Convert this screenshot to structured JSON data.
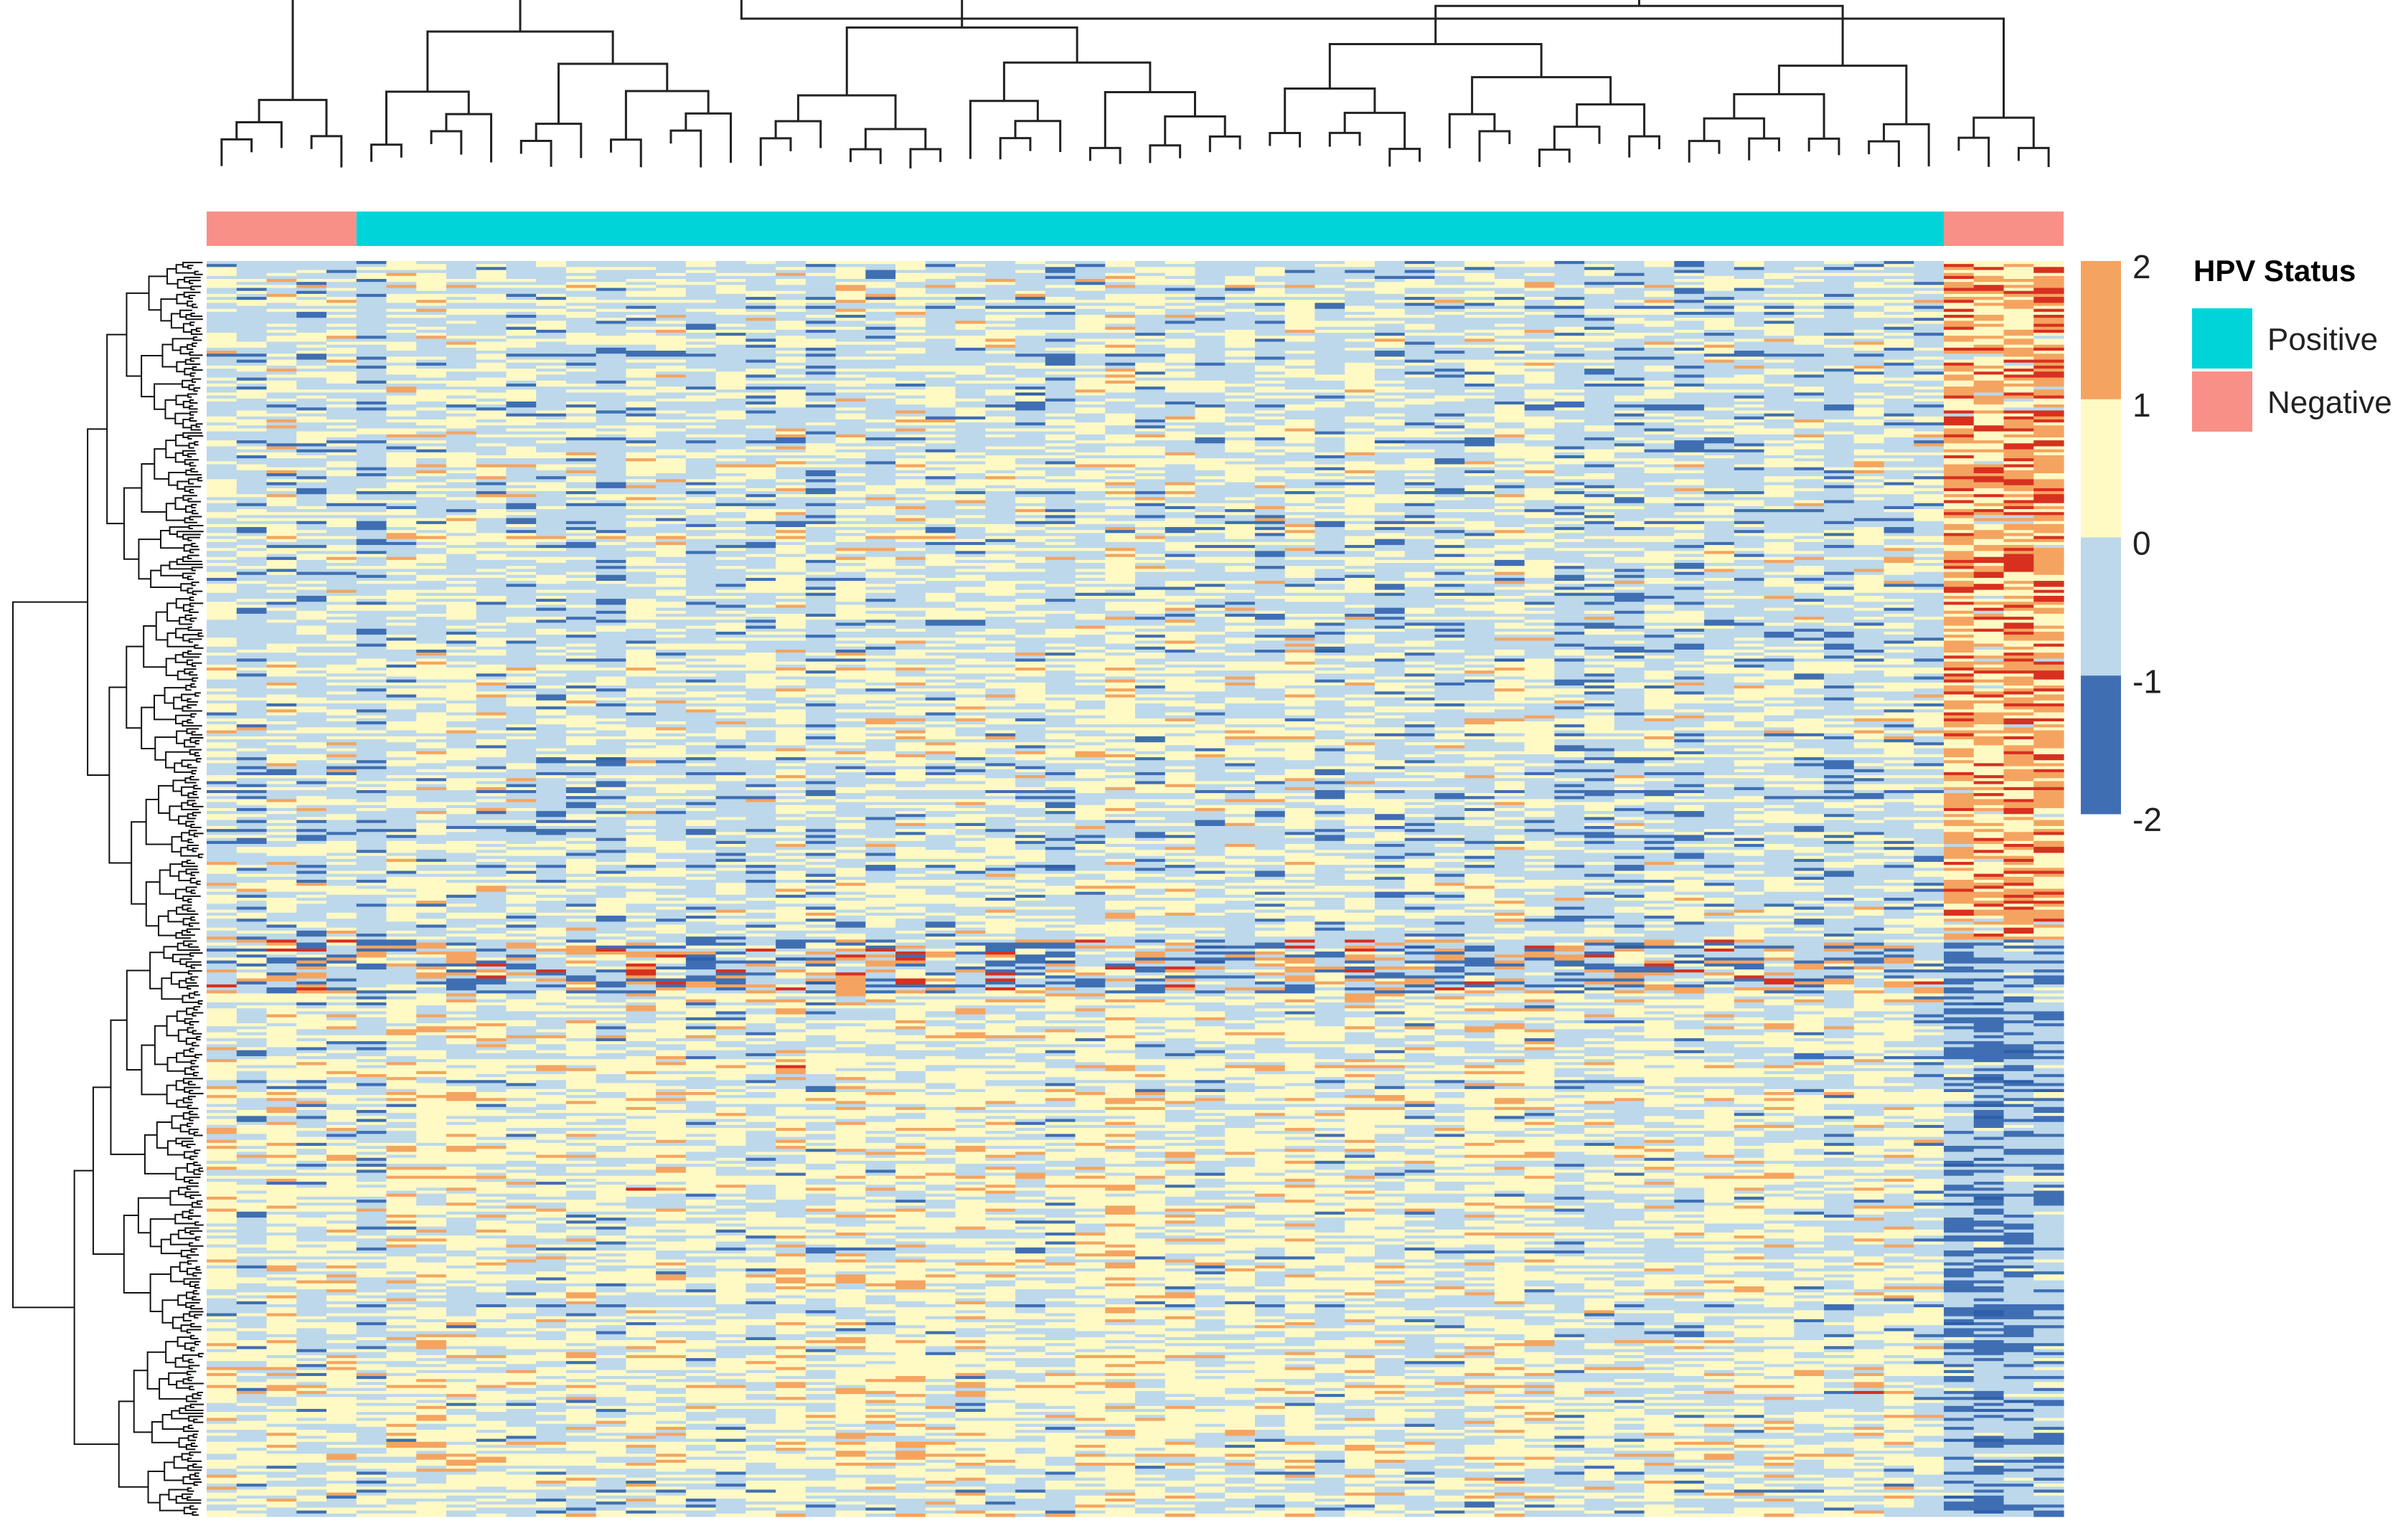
{
  "chart_data": {
    "type": "heatmap",
    "title": "",
    "xlabel": "",
    "ylabel": "",
    "n_samples": 62,
    "n_genes_shown": 420,
    "sample_groups": [
      {
        "status": "Negative",
        "count": 5
      },
      {
        "status": "Positive",
        "count": 53
      },
      {
        "status": "Negative",
        "count": 4
      }
    ],
    "row_clusters": [
      {
        "name": "upper",
        "fraction": 0.54
      },
      {
        "name": "lower",
        "fraction": 0.46
      }
    ],
    "color_scale": {
      "range": [
        -2,
        2
      ],
      "ticks": [
        "2",
        "1",
        "0",
        "-1",
        "-2"
      ],
      "bins": [
        {
          "from": 1,
          "to": 2,
          "color": "#f4a460"
        },
        {
          "from": 0,
          "to": 1,
          "color": "#fff9c4"
        },
        {
          "from": -1,
          "to": 0,
          "color": "#bcd8ea"
        },
        {
          "from": -2,
          "to": -1,
          "color": "#3f6eb3"
        }
      ],
      "extreme_high_color": "#d7301f",
      "extreme_low_color": "#2e5fa8"
    },
    "legend": {
      "title": "HPV Status",
      "placement": "right",
      "items": [
        {
          "label": "Positive",
          "color": "#00d4d9"
        },
        {
          "label": "Negative",
          "color": "#f89088"
        }
      ]
    },
    "column_dendrogram": true,
    "row_dendrogram": true
  }
}
